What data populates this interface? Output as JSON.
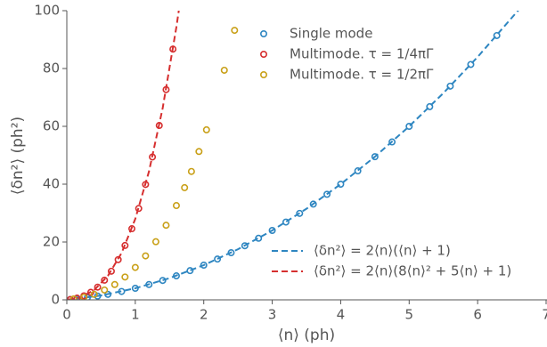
{
  "chart_data": {
    "type": "scatter",
    "xlabel": "⟨n⟩ (ph)",
    "ylabel": "⟨δn²⟩ (ph²)",
    "xlim": [
      0,
      7
    ],
    "ylim": [
      0,
      100
    ],
    "xticks": [
      0,
      1,
      2,
      3,
      4,
      5,
      6,
      7
    ],
    "yticks": [
      0,
      20,
      40,
      60,
      80,
      100
    ],
    "series": [
      {
        "name": "Single mode",
        "color": "#2e86c1",
        "x": [
          0.05,
          0.15,
          0.3,
          0.45,
          0.6,
          0.8,
          1.0,
          1.2,
          1.4,
          1.6,
          1.8,
          2.0,
          2.2,
          2.4,
          2.6,
          2.8,
          3.0,
          3.2,
          3.4,
          3.6,
          3.8,
          4.0,
          4.25,
          4.5,
          4.75,
          5.0,
          5.3,
          5.6,
          5.9,
          6.28
        ],
        "values": [
          0.1,
          0.3,
          0.8,
          1.3,
          1.9,
          2.9,
          4,
          5.3,
          6.7,
          8.3,
          10.1,
          12,
          14.1,
          16.3,
          18.7,
          21.3,
          24,
          26.9,
          29.9,
          33.1,
          36.5,
          40,
          44.6,
          49.5,
          54.6,
          60,
          66.8,
          73.9,
          81.4,
          91.4
        ]
      },
      {
        "name": "Multimode. τ = 1/4πΓ",
        "color": "#d62f2f",
        "x": [
          0.05,
          0.15,
          0.25,
          0.35,
          0.45,
          0.55,
          0.65,
          0.75,
          0.85,
          0.95,
          1.05,
          1.15,
          1.25,
          1.35,
          1.45,
          1.55
        ],
        "values": [
          0.1,
          0.6,
          1.4,
          2.6,
          4.4,
          6.8,
          9.9,
          13.9,
          18.8,
          24.6,
          31.6,
          39.9,
          49.4,
          60.3,
          72.7,
          86.7
        ]
      },
      {
        "name": "Multimode. τ = 1/2πΓ",
        "color": "#c9a018",
        "x": [
          0.1,
          0.25,
          0.4,
          0.55,
          0.7,
          0.85,
          1.0,
          1.15,
          1.3,
          1.45,
          1.6,
          1.72,
          1.82,
          1.93,
          2.04,
          2.3,
          2.45
        ],
        "values": [
          0.3,
          0.9,
          1.9,
          3.4,
          5.3,
          7.9,
          11.2,
          15.2,
          20.1,
          25.8,
          32.6,
          38.8,
          44.4,
          51.3,
          58.8,
          79.4,
          93.2
        ]
      }
    ],
    "fits": [
      {
        "name": "⟨δn²⟩ = 2⟨n⟩(⟨n⟩ + 1)",
        "color": "#2e86c1",
        "x": [
          0,
          0.5,
          1,
          1.5,
          2,
          2.5,
          3,
          3.5,
          4,
          4.5,
          5,
          5.5,
          6,
          6.6
        ],
        "values": [
          0,
          1.5,
          4,
          7.5,
          12,
          17.5,
          24,
          31.5,
          40,
          49.5,
          60,
          71.5,
          84,
          100.3
        ]
      },
      {
        "name": "⟨δn²⟩ = 2⟨n⟩(8⟨n⟩² + 5⟨n⟩ + 1)",
        "color": "#d62f2f",
        "x": [
          0,
          0.2,
          0.4,
          0.6,
          0.8,
          1.0,
          1.2,
          1.4,
          1.6,
          1.65
        ],
        "values": [
          0,
          0.9,
          3.4,
          8.3,
          16.2,
          28,
          44.4,
          66.3,
          94.3,
          102.4
        ]
      }
    ]
  }
}
